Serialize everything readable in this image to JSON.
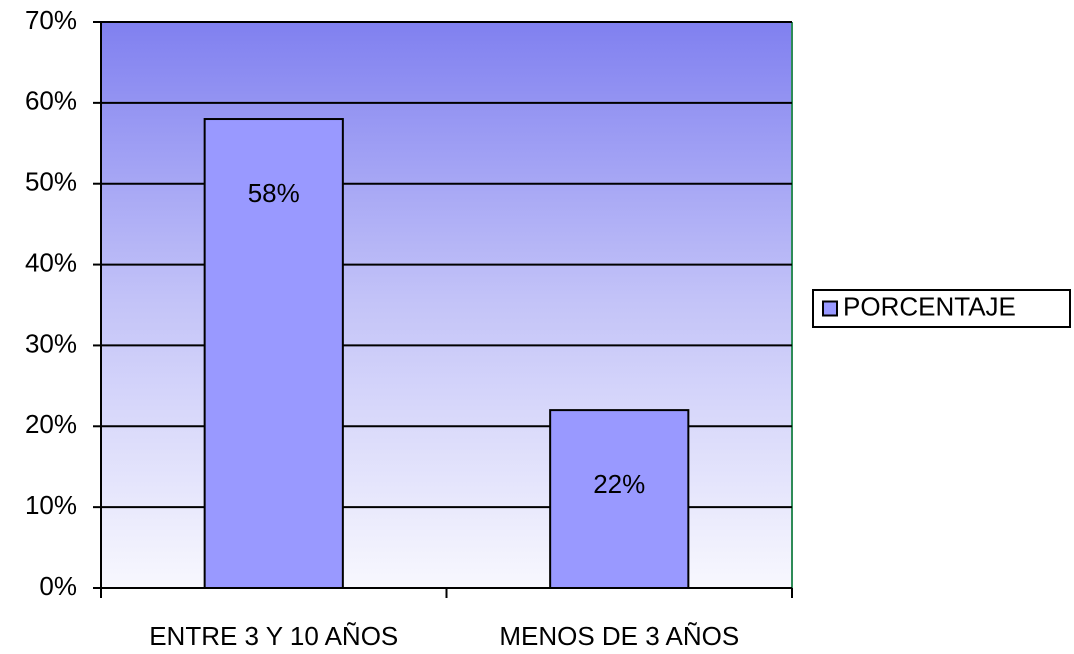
{
  "chart_data": {
    "type": "bar",
    "categories": [
      "ENTRE 3 Y 10 AÑOS",
      "MENOS DE 3 AÑOS"
    ],
    "series": [
      {
        "name": "PORCENTAJE",
        "color": "#9999ff",
        "values": [
          58,
          22
        ],
        "value_labels": [
          "58%",
          "22%"
        ]
      }
    ],
    "ylim": [
      0,
      70
    ],
    "yticks": [
      {
        "value": 0,
        "label": "0%"
      },
      {
        "value": 10,
        "label": "10%"
      },
      {
        "value": 20,
        "label": "20%"
      },
      {
        "value": 30,
        "label": "30%"
      },
      {
        "value": 40,
        "label": "40%"
      },
      {
        "value": 50,
        "label": "50%"
      },
      {
        "value": 60,
        "label": "60%"
      },
      {
        "value": 70,
        "label": "70%"
      }
    ],
    "grid": true,
    "legend": "right"
  }
}
